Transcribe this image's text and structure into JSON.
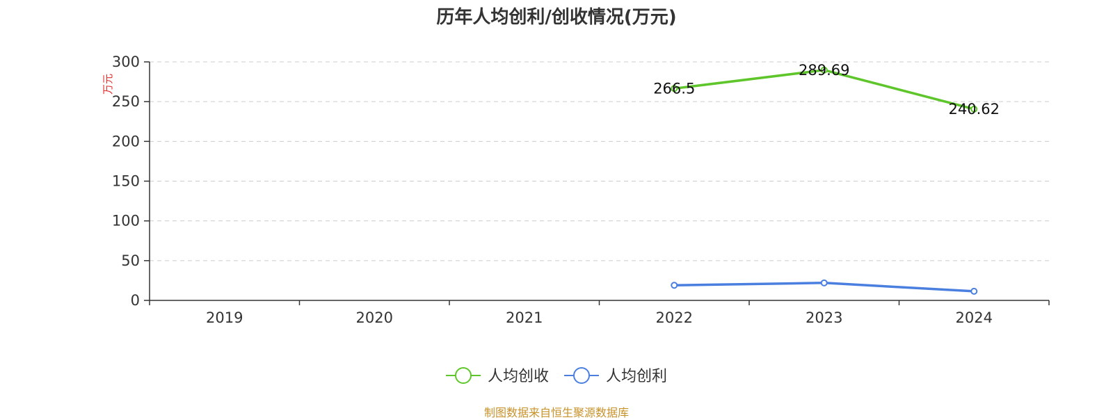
{
  "chart_data": {
    "type": "line",
    "title": "历年人均创利/创收情况(万元)",
    "ylabel": "万元",
    "categories": [
      "2019",
      "2020",
      "2021",
      "2022",
      "2023",
      "2024"
    ],
    "ylim": [
      0,
      300
    ],
    "yticks": [
      0,
      50,
      100,
      150,
      200,
      250,
      300
    ],
    "grid": true,
    "legend_position": "bottom",
    "series": [
      {
        "name": "人均创收",
        "color": "#5ec62a",
        "values": [
          null,
          null,
          null,
          266.5,
          289.69,
          240.62
        ],
        "labels": [
          "",
          "",
          "",
          "266.5",
          "289.69",
          "240.62"
        ]
      },
      {
        "name": "人均创利",
        "color": "#4a7fe0",
        "values": [
          null,
          null,
          null,
          19,
          22,
          11.5
        ],
        "labels": [
          "",
          "",
          "",
          "",
          "",
          ""
        ]
      }
    ]
  },
  "source": "制图数据来自恒生聚源数据库",
  "colors": {
    "source_text": "#c8922a",
    "unit_text": "#e03030",
    "axis": "#333333",
    "grid": "#cccccc"
  }
}
